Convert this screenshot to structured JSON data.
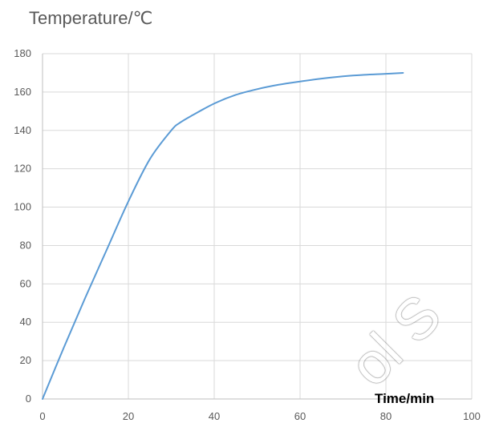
{
  "chart_data": {
    "type": "line",
    "title": "",
    "ylabel": "Temperature/℃",
    "xlabel": "Time/min",
    "xlim": [
      0,
      100
    ],
    "ylim": [
      0,
      180
    ],
    "x_ticks": [
      0,
      20,
      40,
      60,
      80,
      100
    ],
    "y_ticks": [
      0,
      20,
      40,
      60,
      80,
      100,
      120,
      140,
      160,
      180
    ],
    "grid": true,
    "legend": "none",
    "series": [
      {
        "color": "#5b9bd5",
        "x": [
          0,
          5,
          10,
          15,
          20,
          25,
          30,
          32,
          35,
          40,
          45,
          50,
          55,
          60,
          65,
          70,
          75,
          80,
          84
        ],
        "y": [
          0,
          27,
          53,
          78,
          103,
          125,
          140,
          144,
          148,
          154,
          158.5,
          161.5,
          163.8,
          165.5,
          167,
          168.2,
          169,
          169.5,
          170
        ]
      }
    ]
  },
  "watermark": "ol S"
}
